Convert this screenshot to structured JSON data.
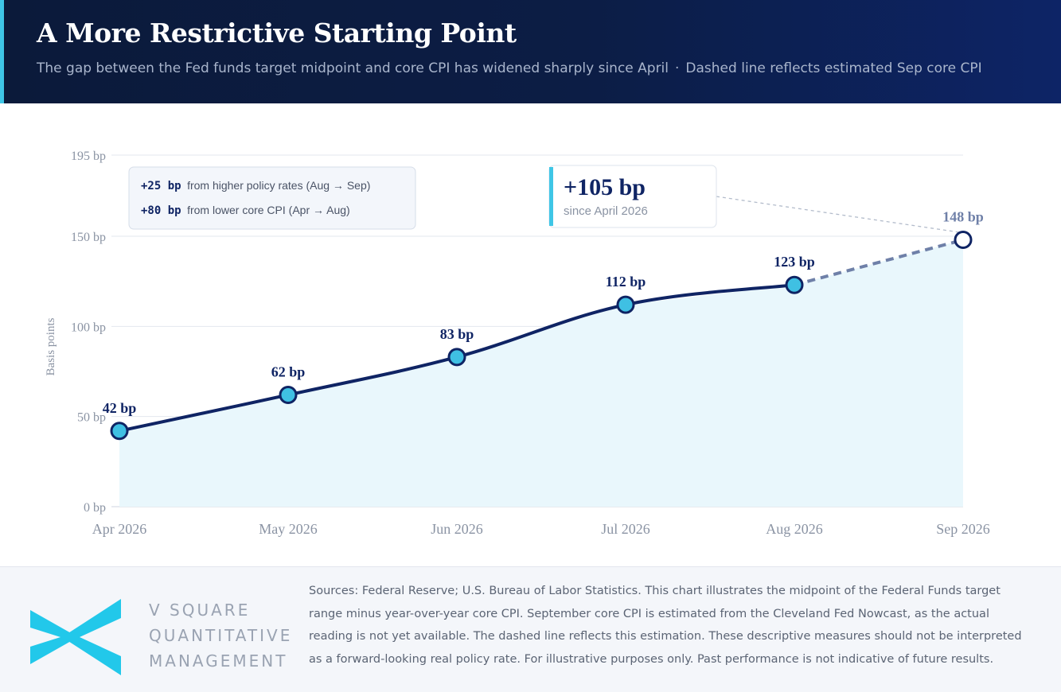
{
  "header": {
    "title": "A More Restrictive Starting Point",
    "subtitle_main": "The gap between the Fed funds target midpoint and core CPI has widened sharply since April",
    "subtitle_sep": "·",
    "subtitle_note": "Dashed line reflects estimated Sep core CPI"
  },
  "callouts": {
    "rows": [
      {
        "value": "+25  bp",
        "text": "from higher policy rates (Aug → Sep)"
      },
      {
        "value": "+80  bp",
        "text": "from lower core CPI (Apr → Aug)"
      }
    ],
    "total_value": "+105 bp",
    "total_caption": "since April 2026"
  },
  "chart_data": {
    "type": "line",
    "title": "",
    "xlabel": "",
    "ylabel": "Basis points",
    "categories": [
      "Apr 2026",
      "May 2026",
      "Jun 2026",
      "Jul 2026",
      "Aug 2026",
      "Sep 2026"
    ],
    "series": [
      {
        "values": [
          42,
          62,
          83,
          112,
          123,
          148
        ],
        "labels": [
          "42 bp",
          "62 bp",
          "83 bp",
          "112 bp",
          "123 bp",
          "148 bp"
        ],
        "estimated_from_index": 4
      }
    ],
    "yticks": [
      0,
      50,
      100,
      150,
      195
    ],
    "ytick_labels": [
      "0 bp",
      "50 bp",
      "100 bp",
      "150 bp",
      "195 bp"
    ],
    "ylim": [
      0,
      195
    ],
    "grid": true,
    "area_fill": true,
    "colors": {
      "line": "#0f2464",
      "estimate_line": "#6f80a8",
      "marker_fill": "#3fc0e3",
      "area": "#e9f7fc",
      "grid": "#e3e7ee",
      "axis_text": "#8a93a3",
      "label": "#0f2464",
      "estimate_label": "#6f80a8"
    }
  },
  "footer": {
    "brand_lines": [
      "V SQUARE",
      "QUANTITATIVE",
      "MANAGEMENT"
    ],
    "notes": "Sources: Federal Reserve; U.S. Bureau of Labor Statistics. This chart illustrates the midpoint of the Federal Funds target range minus year-over-year core CPI. September core CPI is estimated from the Cleveland Fed Nowcast, as the actual reading is not yet available. The dashed line reflects this estimation. These descriptive measures should not be interpreted as a forward-looking real policy rate. For illustrative purposes only. Past performance is not indicative of future results.",
    "logo_color": "#22c8ea"
  }
}
